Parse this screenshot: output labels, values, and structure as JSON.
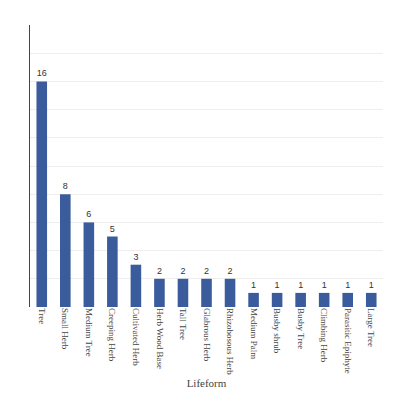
{
  "chart_data": {
    "type": "bar",
    "xlabel": "Lifeform",
    "categories": [
      "Tree",
      "Small Herb",
      "Medium Tree",
      "Creeping Herb",
      "Cultivated Herb",
      "Herb Wood Base",
      "Tall Tree",
      "Glabrous Herb",
      "Rhizobosous Herb",
      "Medium Palm",
      "Busby shrub",
      "Busby Tree",
      "Climbing Herb",
      "Parasitic Epiphyte",
      "Large Tree"
    ],
    "values": [
      16,
      8,
      6,
      5,
      3,
      2,
      2,
      2,
      2,
      1,
      1,
      1,
      1,
      1,
      1
    ],
    "color": "#3a5c9c",
    "ylim": [
      0,
      20
    ],
    "yticks": [
      2,
      4,
      6,
      8,
      10,
      12,
      14,
      16,
      18,
      20
    ],
    "grid": true,
    "data_labels": true,
    "tick_labels": "x"
  }
}
